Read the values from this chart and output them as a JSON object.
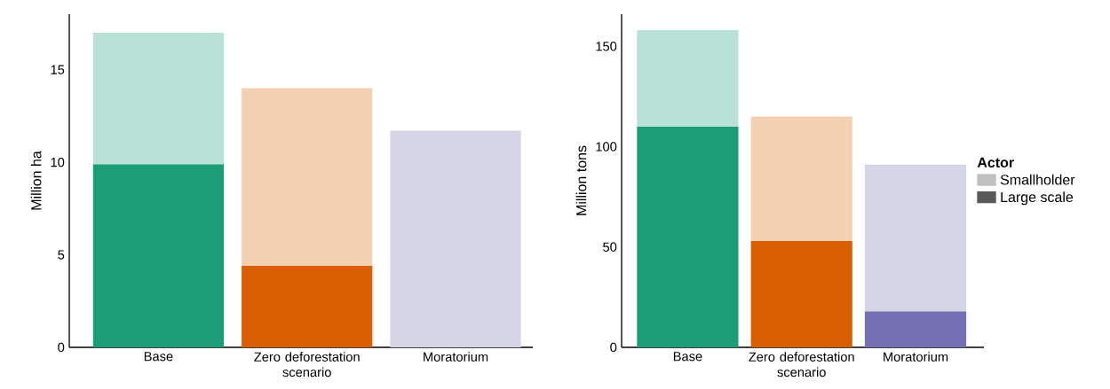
{
  "chart_data": [
    {
      "type": "bar",
      "stacked": true,
      "ylabel": "Million ha",
      "categories": [
        "Base",
        "Zero deforestation scenario",
        "Moratorium"
      ],
      "ylim": [
        0,
        18
      ],
      "yticks": [
        0,
        5,
        10,
        15
      ],
      "series": [
        {
          "colors": [
            "#1b9e77",
            "#d95f02",
            "#7570b3"
          ],
          "values": [
            9.9,
            4.4,
            0
          ]
        },
        {
          "colors": [
            "#b9e2d6",
            "#f3d0b2",
            "#d6d5e8"
          ],
          "values": [
            7.1,
            9.6,
            11.7
          ]
        }
      ]
    },
    {
      "type": "bar",
      "stacked": true,
      "ylabel": "Million tons",
      "categories": [
        "Base",
        "Zero deforestation scenario",
        "Moratorium"
      ],
      "ylim": [
        0,
        166
      ],
      "yticks": [
        0,
        50,
        100,
        150
      ],
      "legend": "right",
      "legend_title": "Actor",
      "series": [
        {
          "name": "Large scale",
          "color": "#595959",
          "colors": [
            "#1b9e77",
            "#d95f02",
            "#7570b3"
          ],
          "values": [
            110,
            53,
            18
          ]
        },
        {
          "name": "Smallholder",
          "color": "#c0c0c0",
          "colors": [
            "#b9e2d6",
            "#f3d0b2",
            "#d6d5e8"
          ],
          "values": [
            48,
            62,
            73
          ]
        }
      ]
    }
  ]
}
